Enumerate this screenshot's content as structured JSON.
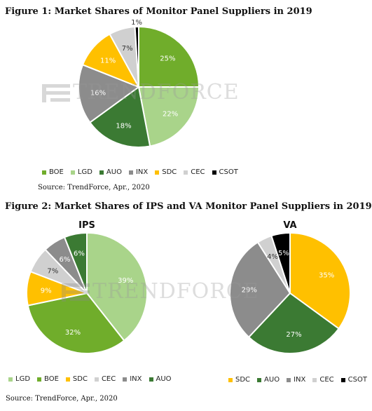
{
  "figure1": {
    "title": "Figure 1: Market Shares of Monitor Panel Suppliers in 2019",
    "source": "Source: TrendForce, Apr., 2020",
    "chart_data": {
      "type": "pie",
      "slices": [
        {
          "name": "BOE",
          "value": 25,
          "label": "25%",
          "color": "#70ad2b"
        },
        {
          "name": "LGD",
          "value": 22,
          "label": "22%",
          "color": "#a9d48a"
        },
        {
          "name": "AUO",
          "value": 18,
          "label": "18%",
          "color": "#3b7a33"
        },
        {
          "name": "INX",
          "value": 16,
          "label": "16%",
          "color": "#8c8c8c"
        },
        {
          "name": "SDC",
          "value": 11,
          "label": "11%",
          "color": "#ffc000"
        },
        {
          "name": "CEC",
          "value": 7,
          "label": "7%",
          "color": "#d0d0d0"
        },
        {
          "name": "CSOT",
          "value": 1,
          "label": "1%",
          "color": "#000000"
        }
      ],
      "legend_position": "bottom"
    }
  },
  "figure2": {
    "title": "Figure 2: Market Shares of IPS and VA Monitor Panel Suppliers in 2019",
    "source": "Source: TrendForce, Apr., 2020",
    "chart_data": [
      {
        "type": "pie",
        "title": "IPS",
        "slices": [
          {
            "name": "LGD",
            "value": 39,
            "label": "39%",
            "color": "#a9d48a"
          },
          {
            "name": "BOE",
            "value": 32,
            "label": "32%",
            "color": "#70ad2b"
          },
          {
            "name": "SDC",
            "value": 9,
            "label": "9%",
            "color": "#ffc000"
          },
          {
            "name": "CEC",
            "value": 7,
            "label": "7%",
            "color": "#d0d0d0"
          },
          {
            "name": "INX",
            "value": 6,
            "label": "6%",
            "color": "#8c8c8c"
          },
          {
            "name": "AUO",
            "value": 6,
            "label": "6%",
            "color": "#3b7a33"
          }
        ],
        "legend_position": "bottom"
      },
      {
        "type": "pie",
        "title": "VA",
        "slices": [
          {
            "name": "SDC",
            "value": 35,
            "label": "35%",
            "color": "#ffc000"
          },
          {
            "name": "AUO",
            "value": 27,
            "label": "27%",
            "color": "#3b7a33"
          },
          {
            "name": "INX",
            "value": 29,
            "label": "29%",
            "color": "#8c8c8c"
          },
          {
            "name": "CEC",
            "value": 4,
            "label": "4%",
            "color": "#d0d0d0"
          },
          {
            "name": "CSOT",
            "value": 5,
            "label": "5%",
            "color": "#000000"
          }
        ],
        "legend_position": "bottom"
      }
    ]
  },
  "watermark": "TRENDFORCE"
}
